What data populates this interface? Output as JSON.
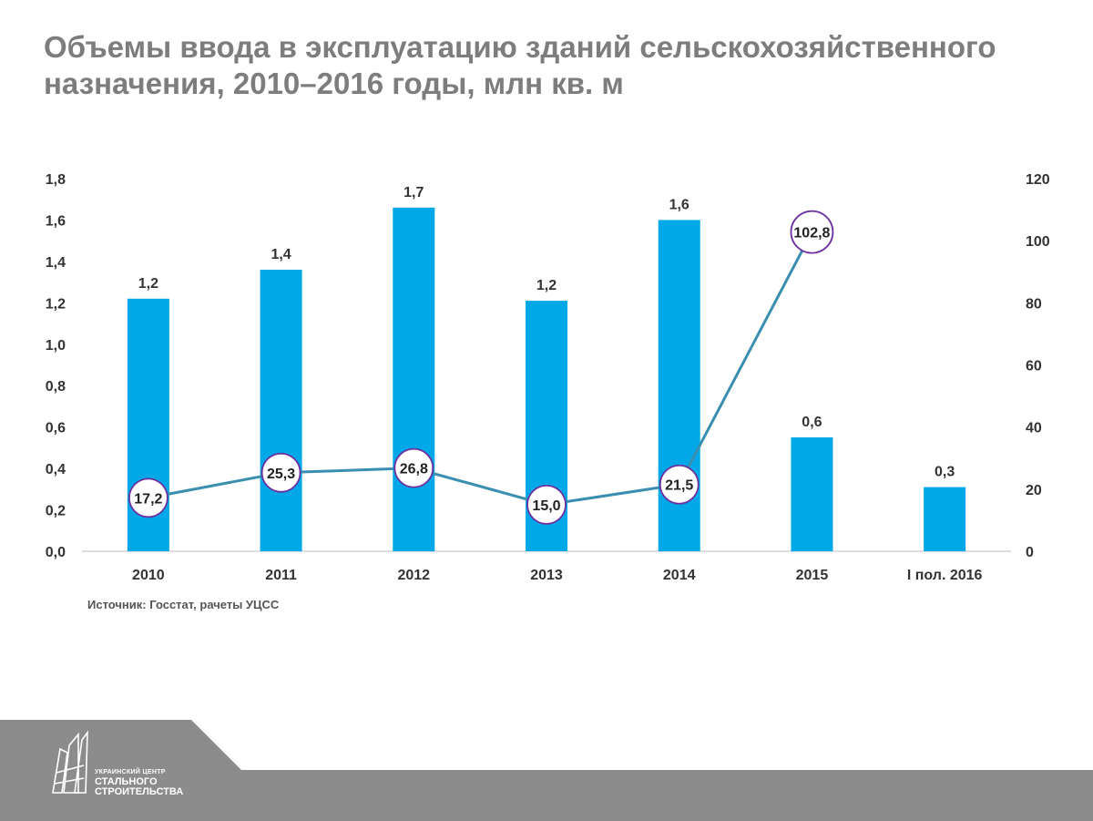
{
  "title": {
    "line1": "Объемы ввода в эксплуатацию зданий сельскохозяйственного",
    "line2": "назначения, 2010–2016 годы, млн кв. м"
  },
  "source": "Источник: Госстат, рачеты УЦСС",
  "logo": {
    "line1": "УКРАИНСКИЙ ЦЕНТР",
    "line2": "СТАЛЬНОГО",
    "line3": "СТРОИТЕЛЬСТВА"
  },
  "colors": {
    "bar": "#00a8e8",
    "line": "#3a8fb0",
    "marker_border": "#6b2fa0",
    "title": "#7d7d7d",
    "footer": "#8c8c8c"
  },
  "chart_data": {
    "type": "bar",
    "categories": [
      "2010",
      "2011",
      "2012",
      "2013",
      "2014",
      "2015",
      "I пол. 2016"
    ],
    "series": [
      {
        "type": "bar",
        "axis": "left",
        "values": [
          1.22,
          1.36,
          1.66,
          1.21,
          1.6,
          0.55,
          0.31
        ],
        "labels": [
          "1,2",
          "1,4",
          "1,7",
          "1,2",
          "1,6",
          "0,6",
          "0,3"
        ]
      },
      {
        "type": "line",
        "axis": "right",
        "values": [
          17.2,
          25.3,
          26.8,
          15.0,
          21.5,
          102.8,
          null
        ],
        "labels": [
          "17,2",
          "25,3",
          "26,8",
          "15,0",
          "21,5",
          "102,8",
          ""
        ]
      }
    ],
    "left_axis": {
      "ylim": [
        0,
        1.8
      ],
      "ticks": [
        "0,0",
        "0,2",
        "0,4",
        "0,6",
        "0,8",
        "1,0",
        "1,2",
        "1,4",
        "1,6",
        "1,8"
      ]
    },
    "right_axis": {
      "ylim": [
        0,
        120
      ],
      "ticks": [
        "0",
        "20",
        "40",
        "60",
        "80",
        "100",
        "120"
      ]
    },
    "grid": false,
    "legend": "none"
  }
}
